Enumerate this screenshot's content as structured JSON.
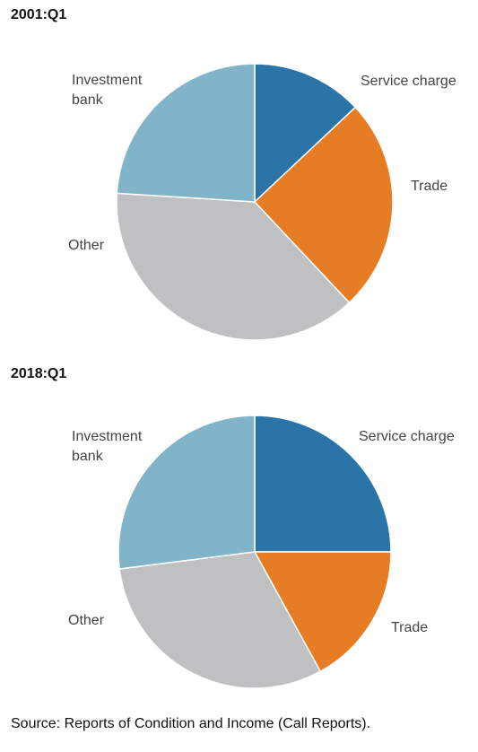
{
  "chart_data": [
    {
      "type": "pie",
      "title": "2001:Q1",
      "colors": {
        "Service charge": "#2a74a8",
        "Trade": "#e67c24",
        "Other": "#bfc0c2",
        "Investment bank": "#82b4c9"
      },
      "slices": [
        {
          "label": "Service charge",
          "value": 13
        },
        {
          "label": "Trade",
          "value": 25
        },
        {
          "label": "Other",
          "value": 38
        },
        {
          "label": "Investment bank",
          "value": 24
        }
      ]
    },
    {
      "type": "pie",
      "title": "2018:Q1",
      "colors": {
        "Service charge": "#2a74a8",
        "Trade": "#e67c24",
        "Other": "#bfc0c2",
        "Investment bank": "#82b4c9"
      },
      "slices": [
        {
          "label": "Service charge",
          "value": 25
        },
        {
          "label": "Trade",
          "value": 17
        },
        {
          "label": "Other",
          "value": 31
        },
        {
          "label": "Investment bank",
          "value": 27
        }
      ]
    }
  ],
  "source": "Source: Reports of Condition and Income (Call Reports)."
}
